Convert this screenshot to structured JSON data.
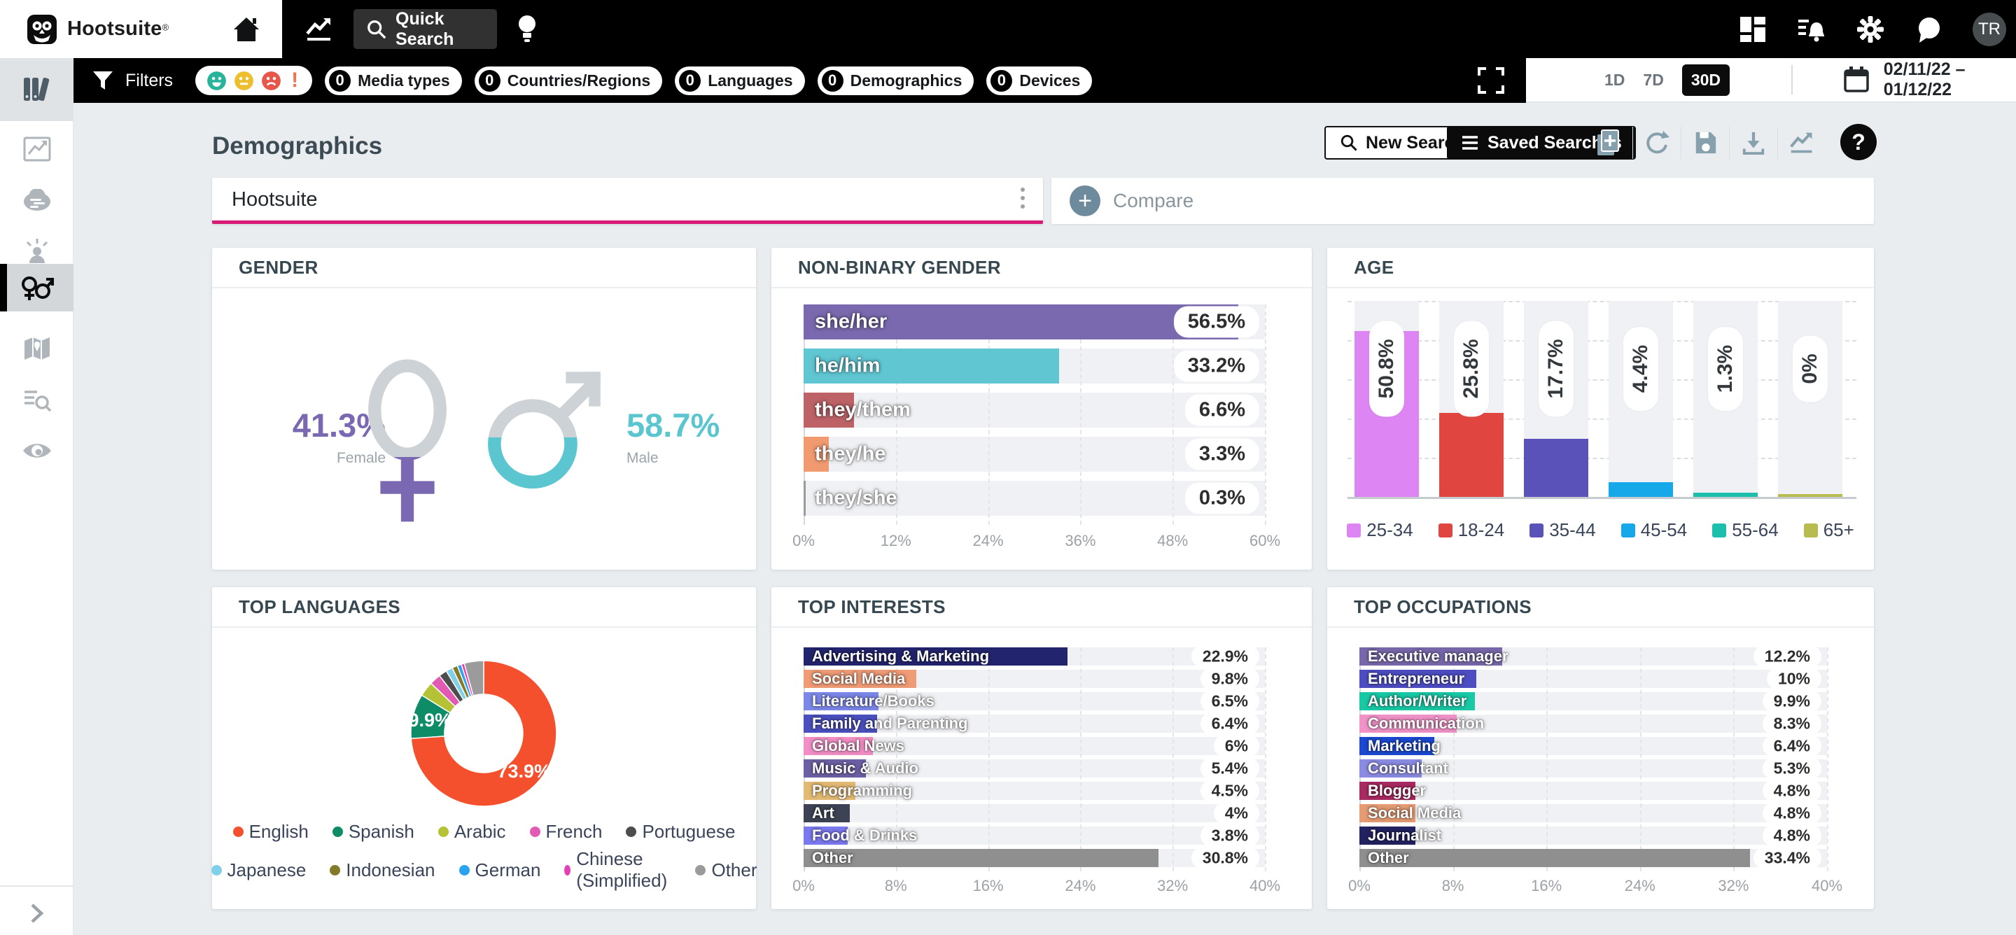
{
  "brand": {
    "name": "Hootsuite",
    "reg_mark": "®",
    "avatar_initials": "TR"
  },
  "topnav": {
    "quick_search_label": "Quick Search"
  },
  "filterbar": {
    "filters_label": "Filters",
    "sentiment_exclaim": "!",
    "pills": [
      {
        "count": "0",
        "label": "Media types"
      },
      {
        "count": "0",
        "label": "Countries/Regions"
      },
      {
        "count": "0",
        "label": "Languages"
      },
      {
        "count": "0",
        "label": "Demographics"
      },
      {
        "count": "0",
        "label": "Devices"
      }
    ]
  },
  "timerange": {
    "options": [
      "1D",
      "7D",
      "30D"
    ],
    "selected": "30D",
    "date_range": "02/11/22 – 01/12/22"
  },
  "page": {
    "title": "Demographics",
    "new_search_label": "New Search",
    "saved_searches_label": "Saved Searches",
    "help_label": "?",
    "search_term": "Hootsuite",
    "compare_label": "Compare"
  },
  "chart_data": [
    {
      "id": "gender",
      "type": "pictogram",
      "title": "GENDER",
      "items": [
        {
          "label": "Female",
          "value": 41.3,
          "display": "41.3%",
          "color": "#7a68b2"
        },
        {
          "label": "Male",
          "value": 58.7,
          "display": "58.7%",
          "color": "#5bc6d0"
        }
      ]
    },
    {
      "id": "non-binary-gender",
      "type": "bar",
      "orientation": "horizontal",
      "title": "NON-BINARY GENDER",
      "categories": [
        "she/her",
        "he/him",
        "they/them",
        "they/he",
        "they/she"
      ],
      "values": [
        56.5,
        33.2,
        6.6,
        3.3,
        0.3
      ],
      "value_labels": [
        "56.5%",
        "33.2%",
        "6.6%",
        "3.3%",
        "0.3%"
      ],
      "colors": [
        "#7a69ae",
        "#5fc6d2",
        "#bd6367",
        "#f19a70",
        "#9a9a9a"
      ],
      "xlim": [
        0,
        60
      ],
      "tick_labels": [
        "0%",
        "12%",
        "24%",
        "36%",
        "48%",
        "60%"
      ]
    },
    {
      "id": "age",
      "type": "bar",
      "orientation": "vertical",
      "title": "AGE",
      "categories": [
        "25-34",
        "18-24",
        "35-44",
        "45-54",
        "55-64",
        "65+"
      ],
      "values": [
        50.8,
        25.8,
        17.7,
        4.4,
        1.3,
        0
      ],
      "value_labels": [
        "50.8%",
        "25.8%",
        "17.7%",
        "4.4%",
        "1.3%",
        "0%"
      ],
      "colors": [
        "#dd85f2",
        "#e0453f",
        "#5a52b8",
        "#16a8e8",
        "#1cbfac",
        "#b8bc4e"
      ],
      "ylim": [
        0,
        60
      ],
      "legend_position": "bottom"
    },
    {
      "id": "top-languages",
      "type": "pie",
      "title": "TOP LANGUAGES",
      "categories": [
        "English",
        "Spanish",
        "Arabic",
        "French",
        "Portuguese",
        "Japanese",
        "Indonesian",
        "German",
        "Chinese (Simplified)",
        "Other"
      ],
      "values": [
        73.9,
        9.9,
        3.3,
        2.5,
        1.8,
        1.5,
        1.2,
        0.9,
        0.7,
        4.3
      ],
      "visible_slice_labels": [
        {
          "index": 0,
          "text": "73.9%"
        },
        {
          "index": 1,
          "text": "9.9%"
        }
      ],
      "colors": [
        "#f4502e",
        "#0d8c67",
        "#b5c235",
        "#e35ab5",
        "#4d4d4d",
        "#7fd0e8",
        "#857a28",
        "#29a3f0",
        "#e83fb5",
        "#9b9b9b"
      ],
      "legend_rows": [
        5,
        5
      ]
    },
    {
      "id": "top-interests",
      "type": "bar",
      "orientation": "horizontal",
      "title": "TOP INTERESTS",
      "categories": [
        "Advertising & Marketing",
        "Social Media",
        "Literature/Books",
        "Family and Parenting",
        "Global News",
        "Music & Audio",
        "Programming",
        "Art",
        "Food & Drinks",
        "Other"
      ],
      "values": [
        22.9,
        9.8,
        6.5,
        6.4,
        6,
        5.4,
        4.5,
        4,
        3.8,
        30.8
      ],
      "value_labels": [
        "22.9%",
        "9.8%",
        "6.5%",
        "6.4%",
        "6%",
        "5.4%",
        "4.5%",
        "4%",
        "3.8%",
        "30.8%"
      ],
      "colors": [
        "#23246e",
        "#ef9b75",
        "#7c88e8",
        "#4a50bd",
        "#f28fc6",
        "#6d5fa3",
        "#e3ba74",
        "#3d4354",
        "#7b79ee",
        "#8f8f8f"
      ],
      "xlim": [
        0,
        40
      ],
      "tick_labels": [
        "0%",
        "8%",
        "16%",
        "24%",
        "32%",
        "40%"
      ]
    },
    {
      "id": "top-occupations",
      "type": "bar",
      "orientation": "horizontal",
      "title": "TOP OCCUPATIONS",
      "categories": [
        "Executive manager",
        "Entrepreneur",
        "Author/Writer",
        "Communication",
        "Marketing",
        "Consultant",
        "Blogger",
        "Social Media",
        "Journalist",
        "Other"
      ],
      "values": [
        12.2,
        10,
        9.9,
        8.3,
        6.4,
        5.3,
        4.8,
        4.8,
        4.8,
        33.4
      ],
      "value_labels": [
        "12.2%",
        "10%",
        "9.9%",
        "8.3%",
        "6.4%",
        "5.3%",
        "4.8%",
        "4.8%",
        "4.8%",
        "33.4%"
      ],
      "colors": [
        "#7868ab",
        "#4d4dc2",
        "#19c9a6",
        "#f193c8",
        "#1b49cf",
        "#8b8be3",
        "#a82a62",
        "#e69c72",
        "#232260",
        "#8f8f8f"
      ],
      "xlim": [
        0,
        40
      ],
      "tick_labels": [
        "0%",
        "8%",
        "16%",
        "24%",
        "32%",
        "40%"
      ]
    }
  ]
}
